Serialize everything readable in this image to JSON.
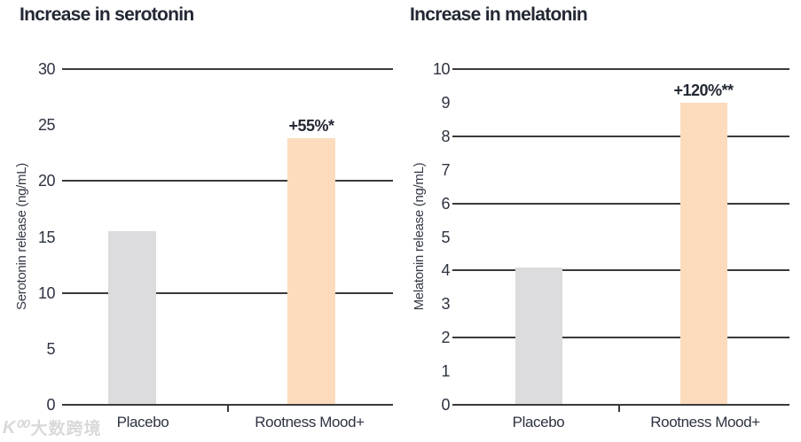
{
  "watermark": {
    "logo_text": "K⁰⁰",
    "site_text": "大数跨境"
  },
  "colors": {
    "bar_placebo": "#dcdcde",
    "bar_product": "#fcdcbd",
    "grid": "#3a3a3a",
    "text": "#232834"
  },
  "chart_data": [
    {
      "type": "bar",
      "title": "Increase in serotonin",
      "ylabel": "Serotonin release (ng/mL)",
      "xlabel": "",
      "categories": [
        "Placebo",
        "Rootness Mood+"
      ],
      "values": [
        15.5,
        23.8
      ],
      "annotations": [
        "",
        "+55%*"
      ],
      "bar_colors": [
        "#dcdcde",
        "#fcdcbd"
      ],
      "ylim": [
        0,
        30
      ],
      "yticks": [
        0,
        5,
        10,
        15,
        20,
        25,
        30
      ],
      "gridlines": [
        0,
        10,
        20,
        30
      ],
      "grid": true,
      "legend": "none"
    },
    {
      "type": "bar",
      "title": "Increase in melatonin",
      "ylabel": "Melatonin release (ng/mL)",
      "xlabel": "",
      "categories": [
        "Placebo",
        "Rootness Mood+"
      ],
      "values": [
        4.1,
        9.0
      ],
      "annotations": [
        "",
        "+120%**"
      ],
      "bar_colors": [
        "#dcdcde",
        "#fcdcbd"
      ],
      "ylim": [
        0,
        10
      ],
      "yticks": [
        0,
        1,
        2,
        3,
        4,
        5,
        6,
        7,
        8,
        9,
        10
      ],
      "gridlines": [
        0,
        2,
        4,
        6,
        8,
        10
      ],
      "grid": true,
      "legend": "none"
    }
  ]
}
